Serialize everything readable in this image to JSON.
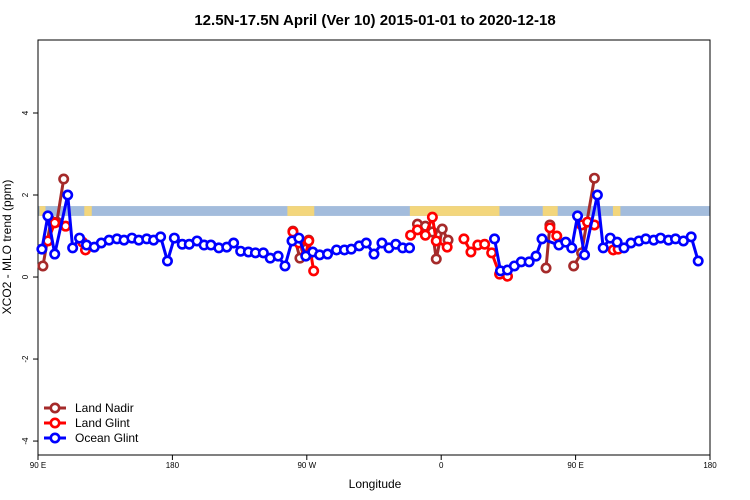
{
  "chart_data": {
    "type": "line",
    "title": "12.5N-17.5N April (Ver 10)   2015-01-01 to 2020-12-18",
    "x_label": "Longitude",
    "y_label": "XCO2 - MLO trend (ppm)",
    "xlim": [
      90,
      540
    ],
    "ylim": [
      -4.34,
      5.78
    ],
    "xticks": [
      {
        "value": 90,
        "label": "90 E"
      },
      180,
      {
        "value": 270,
        "label": "90 W"
      },
      {
        "value": 360,
        "label": "0"
      },
      {
        "value": 450,
        "label": "90 E"
      },
      {
        "value": 540,
        "label": "180"
      }
    ],
    "yticks": [
      -4,
      -2,
      0,
      2,
      4
    ],
    "legend": "bottom-left",
    "land_mask": {
      "ylim": [
        1.49,
        1.73
      ],
      "ocean_color": "#a3bcdc",
      "land_color": "#f3d67c",
      "ranges": [
        [
          91,
          95
        ],
        [
          121,
          126
        ],
        [
          257,
          275
        ],
        [
          339,
          399
        ],
        [
          428,
          438
        ],
        [
          475,
          480
        ]
      ]
    },
    "series": [
      {
        "name": "Land Nadir",
        "color": "#a52a2a",
        "x": [
          93.3,
          98.6,
          102.6,
          107.2,
          null,
          260.7,
          265.4,
          269.3,
          271.3,
          null,
          344.1,
          349.4,
          354.1,
          356.7,
          360.7,
          364.6,
          null,
          430.2,
          432.8,
          null,
          448.7,
          454.0,
          462.6
        ],
        "values": [
          0.27,
          1.37,
          1.34,
          2.39,
          null,
          1.12,
          0.46,
          0.68,
          0.9,
          null,
          1.29,
          1.24,
          1.1,
          0.44,
          1.17,
          0.9,
          null,
          0.22,
          1.27,
          null,
          0.27,
          0.59,
          2.41
        ]
      },
      {
        "name": "Land Glint",
        "color": "#ff0000",
        "x": [
          96.6,
          101.2,
          108.5,
          null,
          119.8,
          121.8,
          null,
          260.7,
          264.7,
          269.3,
          271.3,
          274.6,
          null,
          339.5,
          344.1,
          349.4,
          354.1,
          356.7,
          364.0,
          null,
          375.2,
          379.9,
          384.5,
          389.1,
          393.8,
          399.1,
          404.4,
          null,
          432.8,
          437.4,
          null,
          454.0,
          458.0,
          462.6,
          null,
          475.2,
          478.5
        ],
        "values": [
          0.88,
          1.32,
          1.24,
          null,
          0.85,
          0.66,
          null,
          1.1,
          0.83,
          0.54,
          0.88,
          0.15,
          null,
          1.02,
          1.15,
          1.02,
          1.46,
          0.88,
          0.73,
          null,
          0.93,
          0.61,
          0.78,
          0.8,
          0.59,
          0.07,
          0.02,
          null,
          1.2,
          1.0,
          null,
          1.27,
          1.34,
          1.27,
          null,
          0.66,
          0.68
        ]
      },
      {
        "name": "Ocean Glint",
        "color": "#0000ff",
        "x": [
          92.6,
          96.6,
          101.2,
          109.9,
          113.2,
          117.8,
          122.5,
          127.7,
          132.4,
          137.6,
          142.9,
          147.6,
          152.9,
          157.5,
          162.8,
          167.4,
          172.1,
          176.7,
          181.3,
          186.6,
          191.3,
          196.5,
          201.2,
          205.8,
          211.1,
          216.4,
          221.0,
          225.7,
          230.9,
          235.6,
          240.9,
          245.5,
          250.8,
          255.4,
          260.1,
          264.7,
          269.3,
          274.0,
          278.6,
          283.9,
          289.9,
          295.2,
          299.8,
          305.1,
          309.8,
          315.0,
          320.3,
          325.0,
          329.6,
          334.2,
          338.8,
          null,
          395.7,
          399.7,
          404.4,
          409.0,
          413.6,
          418.9,
          423.5,
          427.5,
          438.8,
          443.4,
          447.4,
          451.3,
          456.0,
          464.6,
          468.5,
          473.2,
          477.8,
          482.4,
          487.1,
          492.4,
          497.0,
          502.3,
          506.9,
          512.2,
          516.9,
          522.2,
          527.4,
          532.1
        ],
        "values": [
          0.68,
          1.49,
          0.56,
          2.0,
          0.71,
          0.95,
          0.78,
          0.73,
          0.83,
          0.9,
          0.93,
          0.9,
          0.95,
          0.9,
          0.93,
          0.9,
          0.98,
          0.39,
          0.95,
          0.8,
          0.8,
          0.88,
          0.78,
          0.78,
          0.71,
          0.73,
          0.83,
          0.63,
          0.61,
          0.59,
          0.59,
          0.46,
          0.51,
          0.27,
          0.88,
          0.95,
          0.51,
          0.61,
          0.54,
          0.56,
          0.66,
          0.66,
          0.68,
          0.76,
          0.83,
          0.56,
          0.83,
          0.71,
          0.8,
          0.71,
          0.71,
          null,
          0.93,
          0.15,
          0.17,
          0.27,
          0.37,
          0.37,
          0.51,
          0.93,
          0.78,
          0.85,
          0.71,
          1.49,
          0.54,
          2.0,
          0.71,
          0.95,
          0.85,
          0.71,
          0.83,
          0.88,
          0.93,
          0.9,
          0.95,
          0.9,
          0.93,
          0.88,
          0.98,
          0.39
        ]
      }
    ]
  }
}
